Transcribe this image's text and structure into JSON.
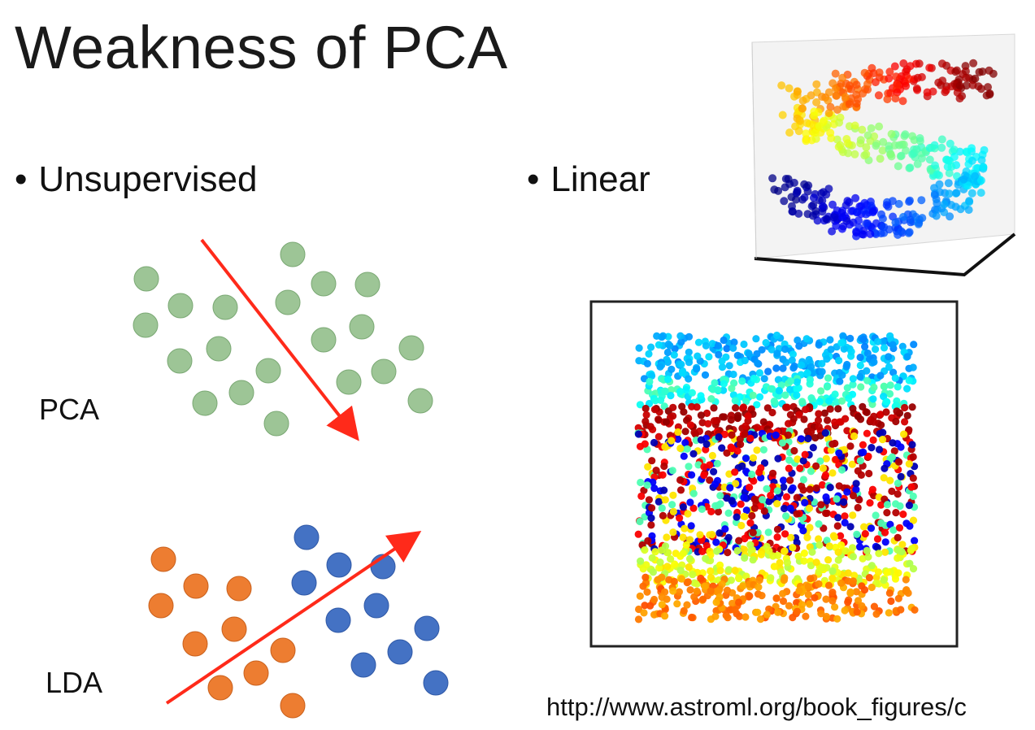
{
  "slide": {
    "title": "Weakness of PCA",
    "bullets": {
      "unsupervised": "Unsupervised",
      "linear": "Linear"
    },
    "labels": {
      "pca": "PCA",
      "lda": "LDA"
    },
    "source_url": "http://www.astroml.org/book_figures/c"
  },
  "colors": {
    "pca_points": "#9dc596",
    "pca_points_stroke": "#7aa873",
    "lda_class_a": "#ed7d31",
    "lda_class_b": "#4472c4",
    "arrow": "#ff2a1a",
    "frame": "#222222"
  },
  "icons": {
    "bullet": "bullet-dot"
  }
}
